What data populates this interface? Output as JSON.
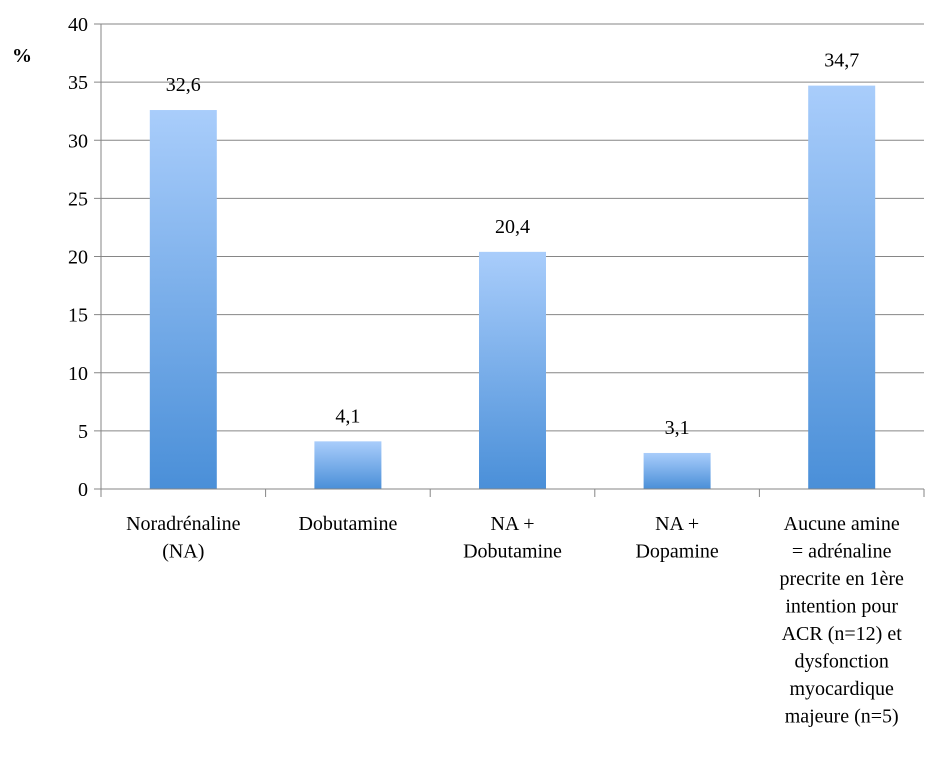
{
  "chart_data": {
    "type": "bar",
    "ylabel": "%",
    "xlabel": "",
    "title": "",
    "ylim": [
      0,
      40
    ],
    "yticks": [
      0,
      5,
      10,
      15,
      20,
      25,
      30,
      35,
      40
    ],
    "grid": true,
    "legend": "none",
    "categories": [
      [
        "Noradrénaline",
        "(NA)"
      ],
      [
        "Dobutamine"
      ],
      [
        "NA +",
        "Dobutamine"
      ],
      [
        "NA +",
        "Dopamine"
      ],
      [
        "Aucune amine",
        "= adrénaline",
        "precrite en 1ère",
        "intention pour",
        "ACR (n=12) et",
        "dysfonction",
        "myocardique",
        "majeure (n=5)"
      ]
    ],
    "values": [
      32.6,
      4.1,
      20.4,
      3.1,
      34.7
    ],
    "value_labels": [
      "32,6",
      "4,1",
      "20,4",
      "3,1",
      "34,7"
    ],
    "colors": {
      "bar_top": "#a9cdfb",
      "bar_bottom": "#4a8fd8",
      "grid": "#868686",
      "axis": "#868686"
    }
  }
}
